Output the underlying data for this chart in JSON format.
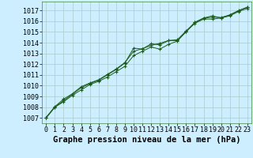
{
  "title": "Graphe pression niveau de la mer (hPa)",
  "background_color": "#cceeff",
  "grid_color": "#aacccc",
  "line_color": "#1a5c1a",
  "marker_color": "#1a5c1a",
  "xlim": [
    -0.5,
    23.5
  ],
  "ylim": [
    1006.5,
    1017.8
  ],
  "yticks": [
    1007,
    1008,
    1009,
    1010,
    1011,
    1012,
    1013,
    1014,
    1015,
    1016,
    1017
  ],
  "xticks": [
    0,
    1,
    2,
    3,
    4,
    5,
    6,
    7,
    8,
    9,
    10,
    11,
    12,
    13,
    14,
    15,
    16,
    17,
    18,
    19,
    20,
    21,
    22,
    23
  ],
  "series": [
    {
      "x": [
        0,
        1,
        2,
        3,
        4,
        5,
        6,
        7,
        8,
        9,
        10,
        11,
        12,
        13,
        14,
        15,
        16,
        17,
        18,
        19,
        20,
        21,
        22,
        23
      ],
      "y": [
        1007.0,
        1008.0,
        1008.6,
        1009.2,
        1009.8,
        1010.2,
        1010.5,
        1011.0,
        1011.5,
        1012.1,
        1013.5,
        1013.4,
        1013.9,
        1013.8,
        1014.2,
        1014.2,
        1015.0,
        1015.9,
        1016.3,
        1016.5,
        1016.3,
        1016.6,
        1017.0,
        1017.3
      ]
    },
    {
      "x": [
        0,
        1,
        2,
        3,
        4,
        5,
        6,
        7,
        8,
        9,
        10,
        11,
        12,
        13,
        14,
        15,
        16,
        17,
        18,
        19,
        20,
        21,
        22,
        23
      ],
      "y": [
        1007.0,
        1008.0,
        1008.5,
        1009.1,
        1009.6,
        1010.1,
        1010.4,
        1010.8,
        1011.3,
        1011.8,
        1012.8,
        1013.2,
        1013.6,
        1013.4,
        1013.85,
        1014.15,
        1015.05,
        1015.8,
        1016.2,
        1016.2,
        1016.3,
        1016.5,
        1016.9,
        1017.2
      ]
    },
    {
      "x": [
        0,
        1,
        2,
        3,
        4,
        5,
        6,
        7,
        8,
        9,
        10,
        11,
        12,
        13,
        14,
        15,
        16,
        17,
        18,
        19,
        20,
        21,
        22,
        23
      ],
      "y": [
        1007.05,
        1008.05,
        1008.75,
        1009.25,
        1009.9,
        1010.25,
        1010.55,
        1011.05,
        1011.55,
        1012.15,
        1013.2,
        1013.45,
        1013.75,
        1013.95,
        1014.2,
        1014.28,
        1015.1,
        1015.88,
        1016.28,
        1016.38,
        1016.35,
        1016.58,
        1016.98,
        1017.32
      ]
    }
  ],
  "title_fontsize": 7.5,
  "tick_fontsize": 6.0
}
